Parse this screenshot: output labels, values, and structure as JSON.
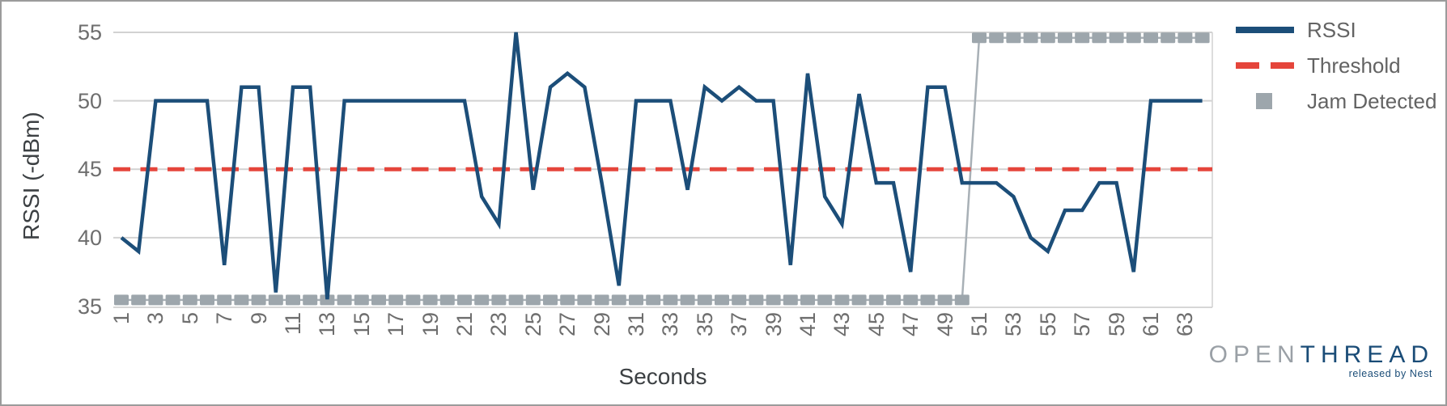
{
  "chart_data": {
    "type": "line",
    "xlabel": "Seconds",
    "ylabel": "RSSI (-dBm)",
    "ylim": [
      35,
      55
    ],
    "yticks": [
      55,
      50,
      45,
      40,
      35
    ],
    "xticks": [
      1,
      3,
      5,
      7,
      9,
      11,
      13,
      15,
      17,
      19,
      21,
      23,
      25,
      27,
      29,
      31,
      33,
      35,
      37,
      39,
      41,
      43,
      45,
      47,
      49,
      51,
      53,
      55,
      57,
      59,
      61,
      63
    ],
    "x_range": [
      1,
      64
    ],
    "grid": true,
    "legend_position": "right",
    "series": [
      {
        "name": "RSSI",
        "type": "line",
        "color": "#1c4e79",
        "x": [
          1,
          2,
          3,
          4,
          5,
          6,
          7,
          8,
          9,
          10,
          11,
          12,
          13,
          14,
          15,
          16,
          17,
          18,
          19,
          20,
          21,
          22,
          23,
          24,
          25,
          26,
          27,
          28,
          29,
          30,
          31,
          32,
          33,
          34,
          35,
          36,
          37,
          38,
          39,
          40,
          41,
          42,
          43,
          44,
          45,
          46,
          47,
          48,
          49,
          50,
          51,
          52,
          53,
          54,
          55,
          56,
          57,
          58,
          59,
          60,
          61,
          62,
          63,
          64
        ],
        "values": [
          40,
          39,
          50,
          50,
          50,
          50,
          38,
          51,
          51,
          36,
          51,
          51,
          35.5,
          50,
          50,
          50,
          50,
          50,
          50,
          50,
          50,
          43,
          41,
          55,
          43.5,
          51,
          52,
          51,
          44,
          36.5,
          50,
          50,
          50,
          43.5,
          51,
          50,
          51,
          50,
          50,
          38,
          52,
          43,
          41,
          50.5,
          44,
          44,
          37.5,
          51,
          51,
          44,
          44,
          44,
          43,
          40,
          39,
          42,
          42,
          44,
          44,
          37.5,
          50,
          50,
          50,
          50
        ]
      },
      {
        "name": "Threshold",
        "type": "line",
        "style": "dashed",
        "color": "#e5453b",
        "value": 45
      },
      {
        "name": "Jam Detected",
        "type": "square-marker-line",
        "color": "#9da6ac",
        "line_color": "#a8b0b6",
        "jam_start_second": 51,
        "values_binary": [
          0,
          0,
          0,
          0,
          0,
          0,
          0,
          0,
          0,
          0,
          0,
          0,
          0,
          0,
          0,
          0,
          0,
          0,
          0,
          0,
          0,
          0,
          0,
          0,
          0,
          0,
          0,
          0,
          0,
          0,
          0,
          0,
          0,
          0,
          0,
          0,
          0,
          0,
          0,
          0,
          0,
          0,
          0,
          0,
          0,
          0,
          0,
          0,
          0,
          0,
          1,
          1,
          1,
          1,
          1,
          1,
          1,
          1,
          1,
          1,
          1,
          1,
          1,
          1
        ],
        "plot_y_false": 35.45,
        "plot_y_true": 54.6
      }
    ]
  },
  "legend": {
    "items": [
      {
        "label": "RSSI"
      },
      {
        "label": "Threshold"
      },
      {
        "label": "Jam Detected"
      }
    ]
  },
  "axis": {
    "x_title": "Seconds",
    "y_title": "RSSI (-dBm)"
  },
  "branding": {
    "logo_part1": "OPEN",
    "logo_part2": "THREAD",
    "tagline": "released by Nest"
  },
  "colors": {
    "rssi_blue": "#1c4e79",
    "threshold_red": "#e5453b",
    "jam_gray": "#9da6ac",
    "gridline": "#d2d2d2",
    "tick_text": "#6e6e6e",
    "axis_title_text": "#3c4043",
    "legend_text": "#636363",
    "logo_gray": "#9aa0a6",
    "logo_navy": "#1a4c77"
  }
}
